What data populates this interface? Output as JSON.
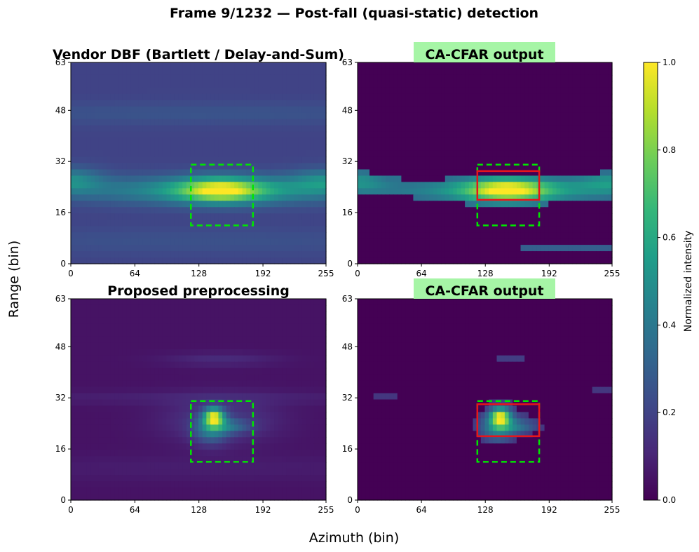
{
  "figure": {
    "suptitle": "Frame 9/1232 — Post-fall (quasi-static) detection",
    "xlabel": "Azimuth (bin)",
    "ylabel": "Range (bin)"
  },
  "colorbar": {
    "label": "Normalized intensity",
    "colormap": "viridis",
    "ticks": [
      "0.0",
      "0.2",
      "0.4",
      "0.6",
      "0.8",
      "1.0"
    ],
    "range": [
      0.0,
      1.0
    ]
  },
  "colors": {
    "ground_truth_box": "#00e600",
    "detection_box": "#e8141c",
    "cfar_title_bg": "#a6f5a6"
  },
  "chart_data": [
    {
      "type": "heatmap",
      "title": "Vendor DBF (Bartlett / Delay-and-Sum)",
      "title_highlight": false,
      "xlim": [
        0,
        255
      ],
      "ylim": [
        0,
        63
      ],
      "xticks": [
        "0",
        "64",
        "128",
        "192",
        "255"
      ],
      "yticks": [
        "0",
        "16",
        "32",
        "48",
        "63"
      ],
      "background_level": 0.2,
      "blobs": [
        {
          "x": 150,
          "y": 23,
          "sx": 28,
          "sy": 2.6,
          "amp": 0.55
        },
        {
          "x": 150,
          "y": 23,
          "sx": 95,
          "sy": 3.0,
          "amp": 0.35
        },
        {
          "x": 0,
          "y": 26,
          "sx": 22,
          "sy": 2.8,
          "amp": 0.25
        },
        {
          "x": 255,
          "y": 26,
          "sx": 25,
          "sy": 2.6,
          "amp": 0.22
        },
        {
          "x": 128,
          "y": 47,
          "sx": 200,
          "sy": 2.5,
          "amp": 0.06
        },
        {
          "x": 128,
          "y": 7,
          "sx": 200,
          "sy": 3.0,
          "amp": 0.05
        }
      ],
      "cfar_threshold": null,
      "ground_truth_box": {
        "x0": 120,
        "x1": 182,
        "y0": 12,
        "y1": 31
      },
      "detection_box": null
    },
    {
      "type": "heatmap",
      "title": "CA-CFAR output",
      "title_highlight": true,
      "xlim": [
        0,
        255
      ],
      "ylim": [
        0,
        63
      ],
      "xticks": [
        "0",
        "64",
        "128",
        "192",
        "255"
      ],
      "yticks": [
        "0",
        "16",
        "32",
        "48",
        "63"
      ],
      "background_level": 0.2,
      "blobs": [
        {
          "x": 150,
          "y": 23,
          "sx": 28,
          "sy": 2.6,
          "amp": 0.55
        },
        {
          "x": 150,
          "y": 23,
          "sx": 95,
          "sy": 3.0,
          "amp": 0.35
        },
        {
          "x": 0,
          "y": 26,
          "sx": 22,
          "sy": 2.8,
          "amp": 0.25
        },
        {
          "x": 255,
          "y": 26,
          "sx": 25,
          "sy": 2.6,
          "amp": 0.22
        },
        {
          "x": 128,
          "y": 47,
          "sx": 200,
          "sy": 2.5,
          "amp": 0.06
        },
        {
          "x": 128,
          "y": 7,
          "sx": 200,
          "sy": 3.0,
          "amp": 0.05
        }
      ],
      "extra_regions": [
        {
          "x0": 0,
          "x1": 45,
          "y0": 22,
          "y1": 28,
          "value": 0.38
        },
        {
          "x0": 165,
          "x1": 255,
          "y0": 3,
          "y1": 6,
          "value": 0.3
        }
      ],
      "cfar_threshold": 0.36,
      "ground_truth_box": {
        "x0": 120,
        "x1": 182,
        "y0": 12,
        "y1": 31
      },
      "detection_box": {
        "x0": 120,
        "x1": 182,
        "y0": 20,
        "y1": 29
      }
    },
    {
      "type": "heatmap",
      "title": "Proposed preprocessing",
      "title_highlight": false,
      "xlim": [
        0,
        255
      ],
      "ylim": [
        0,
        63
      ],
      "xticks": [
        "0",
        "64",
        "128",
        "192",
        "255"
      ],
      "yticks": [
        "0",
        "16",
        "32",
        "48",
        "63"
      ],
      "background_level": 0.05,
      "blobs": [
        {
          "x": 143,
          "y": 26,
          "sx": 7,
          "sy": 2.0,
          "amp": 0.75
        },
        {
          "x": 140,
          "y": 22,
          "sx": 12,
          "sy": 3.0,
          "amp": 0.3
        },
        {
          "x": 160,
          "y": 23,
          "sx": 14,
          "sy": 1.5,
          "amp": 0.2
        },
        {
          "x": 150,
          "y": 25,
          "sx": 40,
          "sy": 5.0,
          "amp": 0.12
        },
        {
          "x": 150,
          "y": 44,
          "sx": 40,
          "sy": 1.5,
          "amp": 0.07
        },
        {
          "x": 128,
          "y": 32,
          "sx": 200,
          "sy": 1.5,
          "amp": 0.04
        },
        {
          "x": 128,
          "y": 10,
          "sx": 200,
          "sy": 3.0,
          "amp": 0.03
        }
      ],
      "cfar_threshold": null,
      "ground_truth_box": {
        "x0": 120,
        "x1": 182,
        "y0": 12,
        "y1": 31
      },
      "detection_box": null
    },
    {
      "type": "heatmap",
      "title": "CA-CFAR output",
      "title_highlight": true,
      "xlim": [
        0,
        255
      ],
      "ylim": [
        0,
        63
      ],
      "xticks": [
        "0",
        "64",
        "128",
        "192",
        "255"
      ],
      "yticks": [
        "0",
        "16",
        "32",
        "48",
        "63"
      ],
      "background_level": 0.05,
      "blobs": [
        {
          "x": 143,
          "y": 26,
          "sx": 7,
          "sy": 2.0,
          "amp": 0.75
        },
        {
          "x": 140,
          "y": 22,
          "sx": 12,
          "sy": 3.0,
          "amp": 0.3
        },
        {
          "x": 160,
          "y": 23,
          "sx": 14,
          "sy": 1.5,
          "amp": 0.2
        },
        {
          "x": 150,
          "y": 25,
          "sx": 40,
          "sy": 5.0,
          "amp": 0.12
        },
        {
          "x": 150,
          "y": 44,
          "sx": 40,
          "sy": 1.5,
          "amp": 0.07
        },
        {
          "x": 128,
          "y": 32,
          "sx": 200,
          "sy": 1.5,
          "amp": 0.04
        },
        {
          "x": 128,
          "y": 10,
          "sx": 200,
          "sy": 3.0,
          "amp": 0.03
        }
      ],
      "extra_regions": [
        {
          "x0": 16,
          "x1": 40,
          "y0": 32,
          "y1": 34,
          "value": 0.16
        },
        {
          "x0": 235,
          "x1": 255,
          "y0": 33,
          "y1": 35,
          "value": 0.16
        },
        {
          "x0": 138,
          "x1": 166,
          "y0": 43,
          "y1": 46,
          "value": 0.18
        }
      ],
      "cfar_threshold": 0.16,
      "ground_truth_box": {
        "x0": 120,
        "x1": 182,
        "y0": 12,
        "y1": 31
      },
      "detection_box": {
        "x0": 120,
        "x1": 182,
        "y0": 20,
        "y1": 30
      }
    }
  ]
}
